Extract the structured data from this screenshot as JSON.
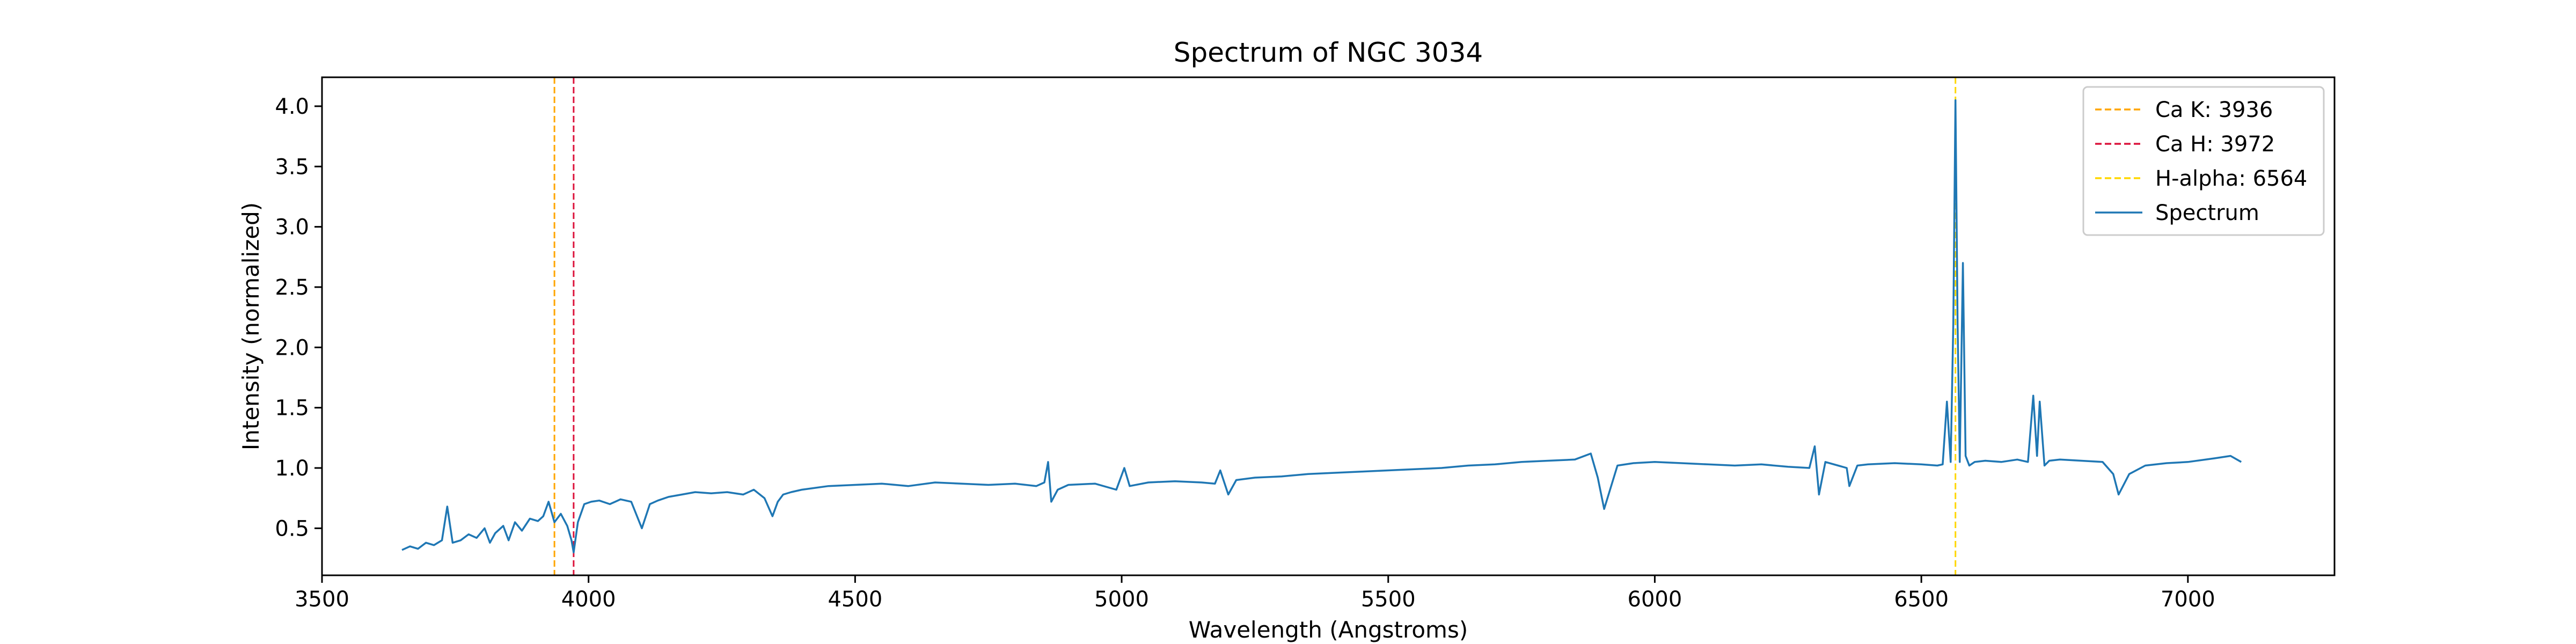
{
  "chart_data": {
    "type": "line",
    "title": "Spectrum of NGC 3034",
    "xlabel": "Wavelength (Angstroms)",
    "ylabel": "Intensity (normalized)",
    "xlim": [
      3500,
      7275
    ],
    "ylim": [
      0.11,
      4.24
    ],
    "xticks": [
      "3500",
      "4000",
      "4500",
      "5000",
      "5500",
      "6000",
      "6500",
      "7000"
    ],
    "xtick_values": [
      3500,
      4000,
      4500,
      5000,
      5500,
      6000,
      6500,
      7000
    ],
    "yticks": [
      "0.5",
      "1.0",
      "1.5",
      "2.0",
      "2.5",
      "3.0",
      "3.5",
      "4.0"
    ],
    "ytick_values": [
      0.5,
      1.0,
      1.5,
      2.0,
      2.5,
      3.0,
      3.5,
      4.0
    ],
    "grid": false,
    "legend_position": "top-right",
    "reference_lines": [
      {
        "name": "Ca K: 3936",
        "x": 3936,
        "color": "#ffa500",
        "style": "dashed"
      },
      {
        "name": "Ca H: 3972",
        "x": 3972,
        "color": "#dc143c",
        "style": "dashed"
      },
      {
        "name": "H-alpha: 6564",
        "x": 6564,
        "color": "#ffd700",
        "style": "dashed"
      }
    ],
    "series": [
      {
        "name": "Spectrum",
        "color": "#1f77b4",
        "x": [
          3650,
          3665,
          3680,
          3695,
          3710,
          3725,
          3735,
          3745,
          3760,
          3775,
          3790,
          3805,
          3815,
          3825,
          3840,
          3850,
          3862,
          3875,
          3890,
          3905,
          3915,
          3925,
          3936,
          3948,
          3960,
          3968,
          3972,
          3980,
          3992,
          4005,
          4020,
          4040,
          4060,
          4080,
          4100,
          4115,
          4130,
          4150,
          4175,
          4200,
          4230,
          4260,
          4290,
          4310,
          4330,
          4345,
          4355,
          4365,
          4380,
          4400,
          4450,
          4500,
          4550,
          4600,
          4650,
          4700,
          4750,
          4800,
          4840,
          4855,
          4862,
          4868,
          4880,
          4900,
          4950,
          4990,
          5005,
          5015,
          5050,
          5100,
          5150,
          5175,
          5185,
          5200,
          5215,
          5250,
          5300,
          5350,
          5400,
          5450,
          5500,
          5550,
          5600,
          5650,
          5700,
          5750,
          5800,
          5850,
          5880,
          5893,
          5905,
          5930,
          5960,
          6000,
          6050,
          6100,
          6150,
          6200,
          6250,
          6290,
          6300,
          6308,
          6320,
          6360,
          6365,
          6380,
          6400,
          6450,
          6500,
          6530,
          6540,
          6548,
          6555,
          6560,
          6564,
          6568,
          6572,
          6578,
          6583,
          6590,
          6600,
          6620,
          6650,
          6680,
          6700,
          6710,
          6717,
          6722,
          6731,
          6740,
          6760,
          6800,
          6840,
          6860,
          6870,
          6890,
          6920,
          6960,
          7000,
          7050,
          7080,
          7100
        ],
        "values": [
          0.32,
          0.35,
          0.33,
          0.38,
          0.36,
          0.4,
          0.68,
          0.38,
          0.4,
          0.45,
          0.42,
          0.5,
          0.38,
          0.46,
          0.52,
          0.4,
          0.55,
          0.48,
          0.58,
          0.56,
          0.6,
          0.72,
          0.55,
          0.62,
          0.52,
          0.4,
          0.3,
          0.55,
          0.7,
          0.72,
          0.73,
          0.7,
          0.74,
          0.72,
          0.5,
          0.7,
          0.73,
          0.76,
          0.78,
          0.8,
          0.79,
          0.8,
          0.78,
          0.82,
          0.75,
          0.6,
          0.72,
          0.78,
          0.8,
          0.82,
          0.85,
          0.86,
          0.87,
          0.85,
          0.88,
          0.87,
          0.86,
          0.87,
          0.85,
          0.88,
          1.05,
          0.72,
          0.82,
          0.86,
          0.87,
          0.82,
          1.0,
          0.85,
          0.88,
          0.89,
          0.88,
          0.87,
          0.98,
          0.78,
          0.9,
          0.92,
          0.93,
          0.95,
          0.96,
          0.97,
          0.98,
          0.99,
          1.0,
          1.02,
          1.03,
          1.05,
          1.06,
          1.07,
          1.12,
          0.92,
          0.66,
          1.02,
          1.04,
          1.05,
          1.04,
          1.03,
          1.02,
          1.03,
          1.01,
          1.0,
          1.18,
          0.78,
          1.05,
          1.0,
          0.85,
          1.02,
          1.03,
          1.04,
          1.03,
          1.02,
          1.03,
          1.55,
          1.05,
          2.2,
          4.05,
          2.2,
          1.05,
          2.7,
          1.1,
          1.02,
          1.05,
          1.06,
          1.05,
          1.07,
          1.05,
          1.6,
          1.1,
          1.55,
          1.02,
          1.06,
          1.07,
          1.06,
          1.05,
          0.95,
          0.78,
          0.95,
          1.02,
          1.04,
          1.05,
          1.08,
          1.1,
          1.05
        ]
      }
    ]
  }
}
